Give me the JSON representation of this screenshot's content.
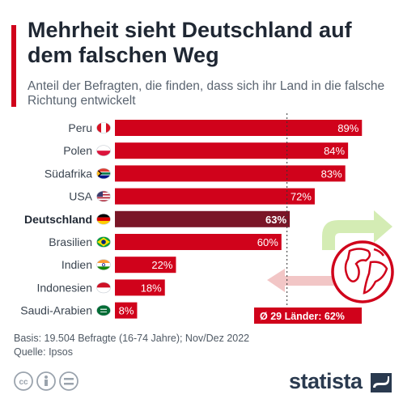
{
  "title": "Mehrheit sieht Deutschland auf dem falschen Weg",
  "subtitle": "Anteil der Befragten, die finden, dass sich ihr Land in die falsche Richtung entwickelt",
  "colors": {
    "accent": "#d0021b",
    "highlight": "#7a1627",
    "arrow_green": "#d4ecb4",
    "arrow_red": "#f2c6c6"
  },
  "chart_data": {
    "type": "bar",
    "orientation": "horizontal",
    "categories": [
      "Peru",
      "Polen",
      "Südafrika",
      "USA",
      "Deutschland",
      "Brasilien",
      "Indien",
      "Indonesien",
      "Saudi-Arabien"
    ],
    "values": [
      89,
      84,
      83,
      72,
      63,
      60,
      22,
      18,
      8
    ],
    "value_labels": [
      "89%",
      "84%",
      "83%",
      "72%",
      "63%",
      "60%",
      "22%",
      "18%",
      "8%"
    ],
    "flag_icons": [
      "peru-flag-icon",
      "poland-flag-icon",
      "south-africa-flag-icon",
      "usa-flag-icon",
      "germany-flag-icon",
      "brazil-flag-icon",
      "india-flag-icon",
      "indonesia-flag-icon",
      "saudi-arabia-flag-icon"
    ],
    "highlighted_category": "Deutschland",
    "xlim": [
      0,
      100
    ],
    "reference_line": {
      "value": 62,
      "label": "Ø 29 Länder: 62%"
    },
    "grid": false,
    "legend": "none"
  },
  "footer": {
    "basis": "Basis: 19.504 Befragte (16-74 Jahre); Nov/Dez 2022",
    "source": "Quelle: Ipsos"
  },
  "logo": {
    "text": "statista"
  }
}
